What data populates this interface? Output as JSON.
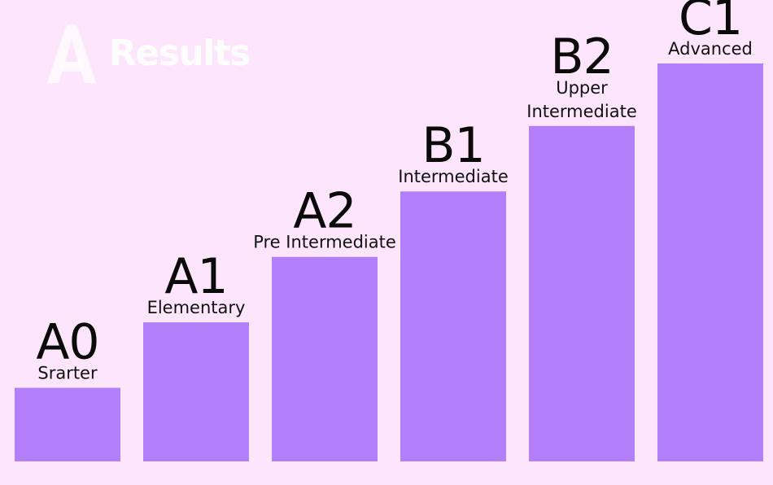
{
  "header": {
    "title": "Results",
    "logo_icon": "a-logo-icon"
  },
  "colors": {
    "background": "#fde6fb",
    "bar": "#b37ff8",
    "text": "#0a0a0a"
  },
  "chart_data": {
    "type": "bar",
    "title": "",
    "xlabel": "",
    "ylabel": "",
    "grid": false,
    "legend": "none",
    "ylim": [
      0,
      6
    ],
    "categories": [
      "A0",
      "A1",
      "A2",
      "B1",
      "B2",
      "C1"
    ],
    "series": [
      {
        "values": [
          1,
          2,
          3,
          4,
          5,
          6
        ],
        "labels": [
          [
            "Srarter"
          ],
          [
            "Elementary"
          ],
          [
            "Pre Intermediate"
          ],
          [
            "Intermediate"
          ],
          [
            "Upper",
            "Intermediate"
          ],
          [
            "Advanced"
          ]
        ]
      }
    ]
  }
}
